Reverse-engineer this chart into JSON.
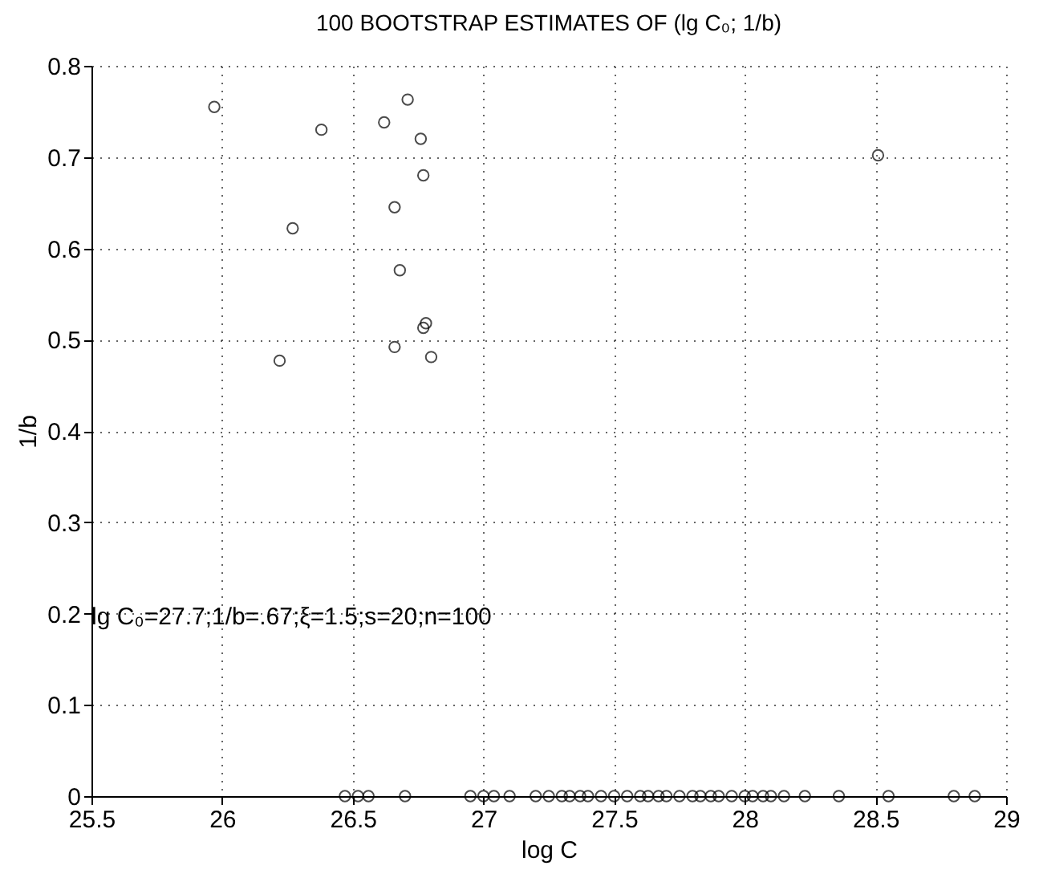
{
  "chart_data": {
    "type": "scatter",
    "title": "100 BOOTSTRAP ESTIMATES OF (lg C₀; 1/b)",
    "xlabel": "log C",
    "ylabel": "1/b",
    "x": [
      25.97,
      26.38,
      26.62,
      26.71,
      26.76,
      26.77,
      26.66,
      26.27,
      26.68,
      26.77,
      26.78,
      26.66,
      26.22,
      26.8,
      28.51,
      26.47,
      26.52,
      26.56,
      26.7,
      26.95,
      27.0,
      27.04,
      27.1,
      27.2,
      27.25,
      27.3,
      27.33,
      27.37,
      27.4,
      27.45,
      27.5,
      27.55,
      27.6,
      27.63,
      27.67,
      27.7,
      27.75,
      27.8,
      27.83,
      27.87,
      27.9,
      27.95,
      28.0,
      28.03,
      28.07,
      28.1,
      28.15,
      28.23,
      28.36,
      28.55,
      28.8,
      28.88
    ],
    "series": [
      {
        "color": "#000000",
        "values": [
          0.755,
          0.73,
          0.738,
          0.763,
          0.72,
          0.68,
          0.645,
          0.622,
          0.576,
          0.513,
          0.518,
          0.492,
          0.477,
          0.481,
          0.702,
          0,
          0,
          0,
          0,
          0,
          0,
          0,
          0,
          0,
          0,
          0,
          0,
          0,
          0,
          0,
          0,
          0,
          0,
          0,
          0,
          0,
          0,
          0,
          0,
          0,
          0,
          0,
          0,
          0,
          0,
          0,
          0,
          0,
          0,
          0,
          0,
          0
        ]
      }
    ],
    "xlim": [
      25.5,
      29
    ],
    "ylim": [
      0,
      0.8
    ],
    "xticks": [
      25.5,
      26,
      26.5,
      27,
      27.5,
      28,
      28.5,
      29
    ],
    "yticks": [
      0,
      0.1,
      0.2,
      0.3,
      0.4,
      0.5,
      0.6,
      0.7,
      0.8
    ],
    "grid": true,
    "marker": "circle",
    "annotations": [
      "lg C₀=27.7;1/b=.67;ξ=1.5;s=20;n=100"
    ]
  }
}
